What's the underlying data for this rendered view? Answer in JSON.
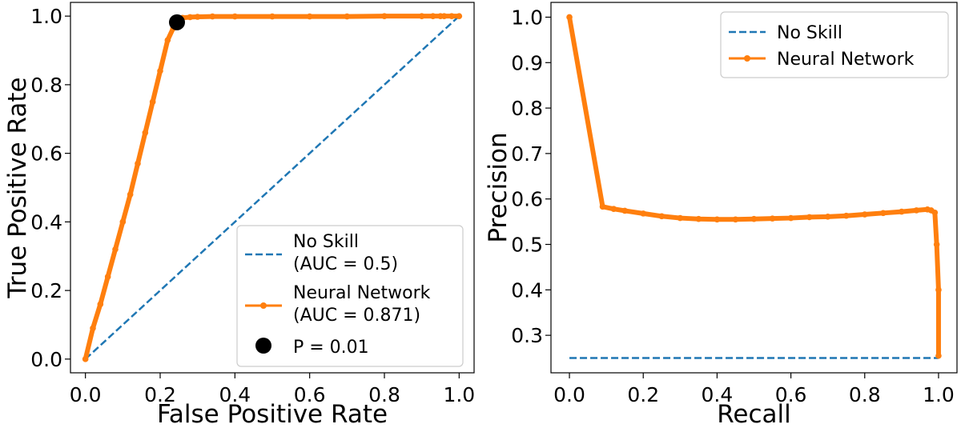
{
  "chart_data": [
    {
      "type": "line",
      "xlabel": "False Positive Rate",
      "ylabel": "True Positive Rate",
      "xlim": [
        -0.04,
        1.04
      ],
      "ylim": [
        -0.04,
        1.04
      ],
      "xticks": [
        0.0,
        0.2,
        0.4,
        0.6,
        0.8,
        1.0
      ],
      "xtick_labels": [
        "0.0",
        "0.2",
        "0.4",
        "0.6",
        "0.8",
        "1.0"
      ],
      "yticks": [
        0.0,
        0.2,
        0.4,
        0.6,
        0.8,
        1.0
      ],
      "ytick_labels": [
        "0.0",
        "0.2",
        "0.4",
        "0.6",
        "0.8",
        "1.0"
      ],
      "grid": false,
      "legend_position": "lower-right",
      "series": [
        {
          "name": "No Skill\n(AUC = 0.5)",
          "legend_lines": [
            "No Skill",
            "(AUC = 0.5)"
          ],
          "style": "dashed",
          "color": "#1f77b4",
          "x": [
            0.0,
            1.0
          ],
          "y": [
            0.0,
            1.0
          ]
        },
        {
          "name": "Neural Network\n(AUC = 0.871)",
          "legend_lines": [
            "Neural Network",
            "(AUC = 0.871)"
          ],
          "style": "solid-marker",
          "color": "#ff7f0e",
          "x": [
            0.0,
            0.02,
            0.04,
            0.06,
            0.08,
            0.1,
            0.12,
            0.14,
            0.16,
            0.18,
            0.2,
            0.22,
            0.235,
            0.245,
            0.25,
            0.26,
            0.28,
            0.3,
            0.34,
            0.4,
            0.5,
            0.6,
            0.7,
            0.8,
            0.9,
            0.93,
            0.95,
            0.96,
            0.98,
            1.0
          ],
          "y": [
            0.0,
            0.09,
            0.16,
            0.24,
            0.32,
            0.4,
            0.48,
            0.57,
            0.66,
            0.75,
            0.84,
            0.93,
            0.965,
            0.98,
            0.99,
            0.995,
            0.997,
            0.998,
            0.999,
            0.999,
            0.999,
            0.999,
            0.999,
            1.0,
            1.0,
            1.0,
            1.0,
            1.0,
            1.0,
            1.0
          ]
        },
        {
          "name": "P = 0.01",
          "legend_lines": [
            "P = 0.01"
          ],
          "style": "point",
          "color": "#000000",
          "x": [
            0.245
          ],
          "y": [
            0.982
          ]
        }
      ]
    },
    {
      "type": "line",
      "xlabel": "Recall",
      "ylabel": "Precision",
      "xlim": [
        -0.05,
        1.05
      ],
      "ylim": [
        0.2175,
        1.0325
      ],
      "xticks": [
        0.0,
        0.2,
        0.4,
        0.6,
        0.8,
        1.0
      ],
      "xtick_labels": [
        "0.0",
        "0.2",
        "0.4",
        "0.6",
        "0.8",
        "1.0"
      ],
      "yticks": [
        0.3,
        0.4,
        0.5,
        0.6,
        0.7,
        0.8,
        0.9,
        1.0
      ],
      "ytick_labels": [
        "0.3",
        "0.4",
        "0.5",
        "0.6",
        "0.7",
        "0.8",
        "0.9",
        "1.0"
      ],
      "grid": false,
      "legend_position": "upper-right",
      "series": [
        {
          "name": "No Skill",
          "legend_lines": [
            "No Skill"
          ],
          "style": "dashed",
          "color": "#1f77b4",
          "x": [
            0.0,
            1.0
          ],
          "y": [
            0.25,
            0.25
          ]
        },
        {
          "name": "Neural Network",
          "legend_lines": [
            "Neural Network"
          ],
          "style": "solid-marker",
          "color": "#ff7f0e",
          "x": [
            0.0,
            0.09,
            0.12,
            0.15,
            0.2,
            0.25,
            0.3,
            0.35,
            0.4,
            0.45,
            0.5,
            0.55,
            0.6,
            0.65,
            0.7,
            0.75,
            0.8,
            0.85,
            0.9,
            0.94,
            0.97,
            0.98,
            0.99,
            0.995,
            1.0,
            1.0
          ],
          "y": [
            1.0,
            0.583,
            0.578,
            0.574,
            0.568,
            0.562,
            0.558,
            0.556,
            0.555,
            0.555,
            0.556,
            0.557,
            0.558,
            0.56,
            0.561,
            0.563,
            0.566,
            0.569,
            0.572,
            0.575,
            0.577,
            0.575,
            0.57,
            0.5,
            0.4,
            0.255
          ]
        }
      ]
    }
  ]
}
